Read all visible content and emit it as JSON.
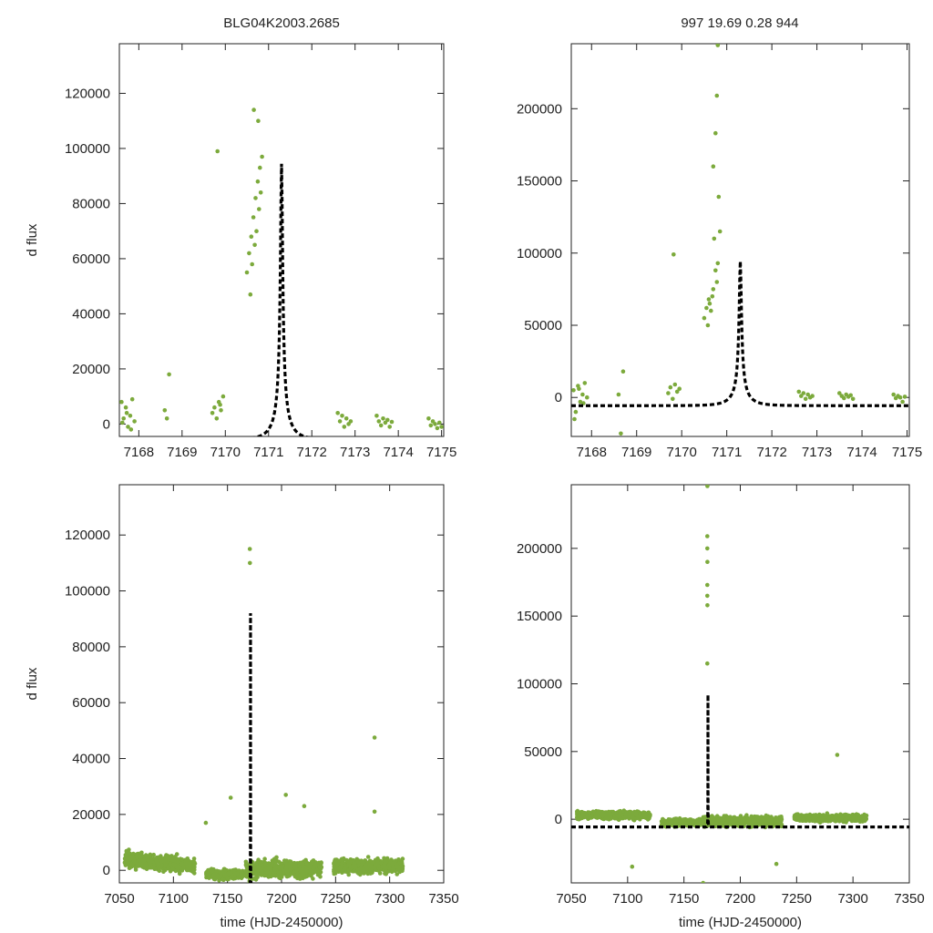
{
  "figure": {
    "title_left": "BLG04K2003.2685",
    "title_right": "997  19.69  0.28  944"
  },
  "colors": {
    "points": "#7caa3c",
    "model": "#000000",
    "axes": "#222222"
  },
  "model": {
    "description": "Paczynski microlensing fit",
    "t0": 7171.3,
    "tE": 0.42,
    "u0": 0.055,
    "fs": 5820,
    "base": -5700
  },
  "chart_data": [
    {
      "type": "scatter",
      "panel": "top-left",
      "title": "BLG04K2003.2685",
      "xlabel": "",
      "ylabel": "d flux",
      "xlim": [
        7167.55,
        7175.05
      ],
      "ylim": [
        -4500,
        138000
      ],
      "xticks": [
        7168,
        7169,
        7170,
        7171,
        7172,
        7173,
        7174,
        7175
      ],
      "yticks": [
        0,
        20000,
        40000,
        60000,
        80000,
        100000,
        120000
      ],
      "series": [
        {
          "name": "data",
          "x": [
            7167.6,
            7167.65,
            7167.7,
            7167.75,
            7167.8,
            7167.85,
            7167.9,
            7167.62,
            7167.72,
            7167.82,
            7168.6,
            7168.65,
            7168.7,
            7169.7,
            7169.75,
            7169.8,
            7169.85,
            7169.9,
            7169.95,
            7169.82,
            7169.88,
            7170.5,
            7170.55,
            7170.6,
            7170.65,
            7170.7,
            7170.75,
            7170.8,
            7170.85,
            7170.58,
            7170.62,
            7170.68,
            7170.72,
            7170.78,
            7170.82,
            7170.66,
            7170.76,
            7172.6,
            7172.65,
            7172.7,
            7172.75,
            7172.8,
            7172.85,
            7172.9,
            7173.5,
            7173.55,
            7173.6,
            7173.65,
            7173.7,
            7173.75,
            7173.8,
            7173.85,
            7174.7,
            7174.75,
            7174.8,
            7174.85,
            7174.9,
            7174.95,
            7175.0
          ],
          "y": [
            8000,
            2000,
            6000,
            -1000,
            3000,
            9000,
            1000,
            500,
            4000,
            -2000,
            5000,
            2000,
            18000,
            4000,
            6000,
            2000,
            8000,
            5000,
            10000,
            99000,
            7000,
            55000,
            62000,
            68000,
            75000,
            82000,
            88000,
            93000,
            97000,
            47000,
            58000,
            65000,
            70000,
            78000,
            84000,
            114000,
            110000,
            4000,
            1000,
            3000,
            -1000,
            2000,
            0,
            1000,
            3000,
            1000,
            -500,
            2000,
            500,
            1500,
            -1000,
            800,
            2000,
            -500,
            1000,
            0,
            -1500,
            500,
            -1000
          ]
        }
      ]
    },
    {
      "type": "scatter",
      "panel": "top-right",
      "title": "997  19.69  0.28  944",
      "xlabel": "",
      "ylabel": "",
      "xlim": [
        7167.55,
        7175.05
      ],
      "ylim": [
        -27000,
        245000
      ],
      "xticks": [
        7168,
        7169,
        7170,
        7171,
        7172,
        7173,
        7174,
        7175
      ],
      "yticks": [
        0,
        50000,
        100000,
        150000,
        200000
      ],
      "series": [
        {
          "name": "data",
          "x": [
            7167.6,
            7167.65,
            7167.7,
            7167.75,
            7167.8,
            7167.85,
            7167.9,
            7167.62,
            7167.72,
            7167.82,
            7168.6,
            7168.65,
            7168.7,
            7169.7,
            7169.75,
            7169.8,
            7169.85,
            7169.9,
            7169.95,
            7169.82,
            7170.5,
            7170.55,
            7170.6,
            7170.65,
            7170.7,
            7170.75,
            7170.8,
            7170.85,
            7170.58,
            7170.62,
            7170.68,
            7170.72,
            7170.78,
            7170.82,
            7170.7,
            7170.75,
            7170.78,
            7170.8,
            7172.6,
            7172.65,
            7172.7,
            7172.75,
            7172.8,
            7172.85,
            7172.9,
            7173.5,
            7173.55,
            7173.6,
            7173.65,
            7173.7,
            7173.75,
            7173.8,
            7174.7,
            7174.75,
            7174.8,
            7174.85,
            7174.9,
            7174.95
          ],
          "y": [
            5000,
            -10000,
            8000,
            -3000,
            2000,
            10000,
            0,
            -15000,
            6000,
            -4000,
            2000,
            -25000,
            18000,
            3000,
            7000,
            -1000,
            9000,
            4000,
            6000,
            99000,
            55000,
            62000,
            68000,
            60000,
            75000,
            88000,
            93000,
            115000,
            50000,
            65000,
            70000,
            110000,
            80000,
            139000,
            160000,
            183000,
            209000,
            244000,
            4000,
            1000,
            3000,
            -1000,
            2000,
            0,
            1000,
            3000,
            1000,
            -500,
            2000,
            500,
            1500,
            -1000,
            2000,
            -500,
            1000,
            0,
            -3000,
            500
          ]
        }
      ]
    },
    {
      "type": "scatter",
      "panel": "bottom-left",
      "title": "",
      "xlabel": "time (HJD-2450000)",
      "ylabel": "d flux",
      "xlim": [
        7050,
        7350
      ],
      "ylim": [
        -4500,
        138000
      ],
      "xticks": [
        7050,
        7100,
        7150,
        7200,
        7250,
        7300,
        7350
      ],
      "yticks": [
        0,
        20000,
        40000,
        60000,
        80000,
        100000,
        120000
      ],
      "highlights": [
        {
          "x": 7170.7,
          "y": 115000
        },
        {
          "x": 7170.8,
          "y": 110000
        },
        {
          "x": 7286,
          "y": 47500
        },
        {
          "x": 7153,
          "y": 26000
        },
        {
          "x": 7204,
          "y": 27000
        },
        {
          "x": 7221,
          "y": 23000
        },
        {
          "x": 7286,
          "y": 21000
        },
        {
          "x": 7130,
          "y": 17000
        }
      ],
      "segments": [
        {
          "from": 7055,
          "to": 7120,
          "center": 4000,
          "slope": -40,
          "spread": 5000
        },
        {
          "from": 7130,
          "to": 7165,
          "center": -1500,
          "slope": 0,
          "spread": 3500
        },
        {
          "from": 7167,
          "to": 7237,
          "center": 500,
          "slope": 0,
          "spread": 6000
        },
        {
          "from": 7248,
          "to": 7312,
          "center": 1500,
          "slope": 0,
          "spread": 5000
        }
      ]
    },
    {
      "type": "scatter",
      "panel": "bottom-right",
      "title": "",
      "xlabel": "time (HJD-2450000)",
      "ylabel": "",
      "xlim": [
        7050,
        7350
      ],
      "ylim": [
        -47000,
        247000
      ],
      "xticks": [
        7050,
        7100,
        7150,
        7200,
        7250,
        7300,
        7350
      ],
      "yticks": [
        0,
        50000,
        100000,
        150000,
        200000
      ],
      "highlights": [
        {
          "x": 7170.8,
          "y": 246000
        },
        {
          "x": 7170.7,
          "y": 209000
        },
        {
          "x": 7170.75,
          "y": 200000
        },
        {
          "x": 7170.8,
          "y": 190000
        },
        {
          "x": 7170.7,
          "y": 173000
        },
        {
          "x": 7170.72,
          "y": 165000
        },
        {
          "x": 7170.78,
          "y": 158000
        },
        {
          "x": 7170.74,
          "y": 115000
        },
        {
          "x": 7286,
          "y": 47500
        },
        {
          "x": 7167,
          "y": -47000
        },
        {
          "x": 7104,
          "y": -35000
        },
        {
          "x": 7232,
          "y": -33000
        }
      ],
      "segments": [
        {
          "from": 7055,
          "to": 7120,
          "center": 3000,
          "slope": 0,
          "spread": 5000
        },
        {
          "from": 7130,
          "to": 7165,
          "center": -2500,
          "slope": 0,
          "spread": 5000
        },
        {
          "from": 7167,
          "to": 7237,
          "center": -1500,
          "slope": 0,
          "spread": 7000
        },
        {
          "from": 7248,
          "to": 7312,
          "center": 1000,
          "slope": 0,
          "spread": 5000
        }
      ]
    }
  ]
}
